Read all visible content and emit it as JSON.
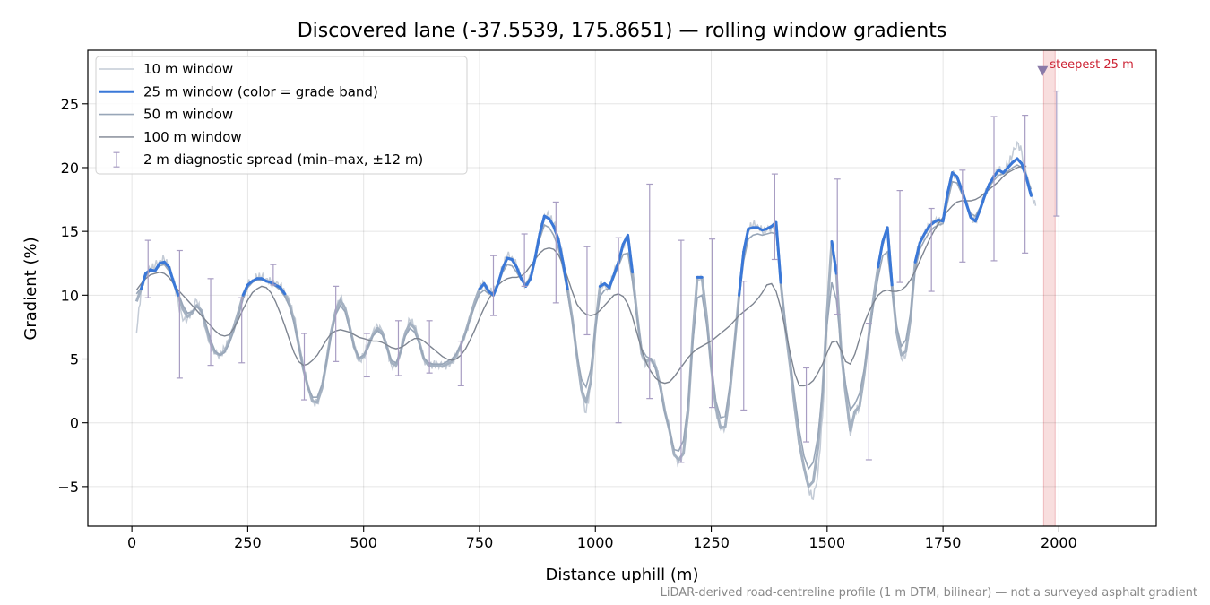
{
  "chart_data": {
    "type": "line",
    "title": "Discovered lane (-37.5539, 175.8651) — rolling window gradients",
    "xlabel": "Distance uphill (m)",
    "ylabel": "Gradient (%)",
    "xlim": [
      -95,
      2210
    ],
    "ylim": [
      -8.1,
      29.2
    ],
    "xticks": [
      0,
      250,
      500,
      750,
      1000,
      1250,
      1500,
      1750,
      2000
    ],
    "yticks": [
      -5,
      0,
      5,
      10,
      15,
      20,
      25
    ],
    "ytick_labels": [
      "−5",
      "0",
      "5",
      "10",
      "15",
      "20",
      "25"
    ],
    "grid": true,
    "legend_position": "top-left",
    "footnote": "LiDAR-derived road-centreline profile (1 m DTM, bilinear) — not a surveyed asphalt gradient",
    "colors": {
      "w10": "#c3cbd6",
      "w25": "#3a78d8",
      "w25_faded": "#a4b1c1",
      "w25_orange": "#e38f10",
      "w50": "#98a6b8",
      "w100": "#7d8490",
      "errorbar": "#a89dc3",
      "steep_band": "#f2c3c3",
      "marker": "#8a7aa8",
      "annotation": "#cc2233"
    },
    "anchors_x": [
      10,
      20,
      30,
      40,
      50,
      60,
      70,
      80,
      90,
      100,
      110,
      120,
      130,
      140,
      150,
      160,
      170,
      180,
      190,
      200,
      210,
      220,
      230,
      240,
      250,
      260,
      270,
      280,
      290,
      300,
      310,
      320,
      330,
      340,
      350,
      360,
      370,
      380,
      390,
      400,
      410,
      420,
      430,
      440,
      450,
      460,
      470,
      480,
      490,
      500,
      510,
      520,
      530,
      540,
      550,
      560,
      570,
      580,
      590,
      600,
      610,
      620,
      630,
      640,
      650,
      660,
      670,
      680,
      690,
      700,
      710,
      720,
      730,
      740,
      750,
      760,
      770,
      780,
      790,
      800,
      810,
      820,
      830,
      840,
      850,
      860,
      870,
      880,
      890,
      900,
      910,
      920,
      930,
      940,
      950,
      960,
      970,
      980,
      990,
      1000,
      1010,
      1020,
      1030,
      1040,
      1050,
      1060,
      1070,
      1080,
      1090,
      1100,
      1110,
      1120,
      1130,
      1140,
      1150,
      1160,
      1170,
      1180,
      1190,
      1200,
      1210,
      1220,
      1230,
      1240,
      1250,
      1260,
      1270,
      1280,
      1290,
      1300,
      1310,
      1320,
      1330,
      1340,
      1350,
      1360,
      1370,
      1380,
      1390,
      1400,
      1410,
      1420,
      1430,
      1440,
      1450,
      1460,
      1470,
      1480,
      1490,
      1500,
      1510,
      1520,
      1530,
      1540,
      1550,
      1560,
      1570,
      1580,
      1590,
      1600,
      1610,
      1620,
      1630,
      1640,
      1650,
      1660,
      1670,
      1680,
      1690,
      1700,
      1710,
      1720,
      1730,
      1740,
      1750,
      1760,
      1770,
      1780,
      1790,
      1800,
      1810,
      1820,
      1830,
      1840,
      1850,
      1860,
      1870,
      1880,
      1890,
      1900,
      1910,
      1920,
      1930,
      1940,
      1950,
      1960,
      1970,
      1980,
      1990,
      2000,
      2010
    ],
    "series": [
      {
        "name": "10 m window",
        "values": [
          7.0,
          10.5,
          11.6,
          12.0,
          12.3,
          12.7,
          12.8,
          12.2,
          11.3,
          9.5,
          8.0,
          8.2,
          8.8,
          9.6,
          8.5,
          7.2,
          6.0,
          5.4,
          5.3,
          5.8,
          6.6,
          7.5,
          8.5,
          9.8,
          10.8,
          11.2,
          11.4,
          11.4,
          11.3,
          11.0,
          10.9,
          10.8,
          10.2,
          9.5,
          8.3,
          6.4,
          4.3,
          2.7,
          1.6,
          1.5,
          2.8,
          5.0,
          7.3,
          8.9,
          9.8,
          9.0,
          7.5,
          5.8,
          4.8,
          5.2,
          6.1,
          7.1,
          7.6,
          7.2,
          5.9,
          4.5,
          4.4,
          5.7,
          7.2,
          8.0,
          7.6,
          6.4,
          5.0,
          4.5,
          4.6,
          4.6,
          4.5,
          4.5,
          4.7,
          5.1,
          6.0,
          7.0,
          8.2,
          9.5,
          10.6,
          11.0,
          10.4,
          10.2,
          11.0,
          12.2,
          13.1,
          13.0,
          12.3,
          11.3,
          10.8,
          11.4,
          13.0,
          15.0,
          16.3,
          16.2,
          15.6,
          14.6,
          12.8,
          10.7,
          8.4,
          5.3,
          2.3,
          0.8,
          3.0,
          7.5,
          10.8,
          10.8,
          10.4,
          11.8,
          12.5,
          14.0,
          14.6,
          12.0,
          8.5,
          5.2,
          4.6,
          4.9,
          4.5,
          3.0,
          1.0,
          -0.5,
          -2.6,
          -3.1,
          -2.5,
          1.0,
          7.0,
          11.5,
          11.0,
          8.0,
          4.2,
          1.0,
          -0.5,
          -0.3,
          2.2,
          6.0,
          10.2,
          13.5,
          15.2,
          15.5,
          15.5,
          15.0,
          15.1,
          15.3,
          15.6,
          11.0,
          7.3,
          4.5,
          1.2,
          -1.7,
          -3.5,
          -5.2,
          -6.0,
          -4.0,
          0.5,
          8.0,
          14.0,
          12.0,
          5.6,
          2.1,
          -1.0,
          1.0,
          1.1,
          3.6,
          6.7,
          9.8,
          12.3,
          14.3,
          15.0,
          11.0,
          7.0,
          5.0,
          5.3,
          8.0,
          12.8,
          14.2,
          14.9,
          15.4,
          15.8,
          15.8,
          15.7,
          18.0,
          19.5,
          19.2,
          18.2,
          17.3,
          16.2,
          15.8,
          16.8,
          17.9,
          18.6,
          19.3,
          19.8,
          19.6,
          20.2,
          21.0,
          22.0,
          21.2,
          19.5,
          18.0,
          17.0
        ]
      },
      {
        "name": "25 m window (color = grade band)",
        "values": [
          9.5,
          10.5,
          11.7,
          12.0,
          11.9,
          12.5,
          12.6,
          12.2,
          11.0,
          10.0,
          8.9,
          8.3,
          8.6,
          9.2,
          8.8,
          7.5,
          6.2,
          5.5,
          5.3,
          5.6,
          6.4,
          7.5,
          8.7,
          10.0,
          10.8,
          11.1,
          11.3,
          11.3,
          11.1,
          11.0,
          10.8,
          10.6,
          10.1,
          9.3,
          8.0,
          6.1,
          4.2,
          2.8,
          1.7,
          1.6,
          2.7,
          4.8,
          7.1,
          8.8,
          9.6,
          9.0,
          7.5,
          5.9,
          5.0,
          5.2,
          6.0,
          6.9,
          7.4,
          7.1,
          6.0,
          4.7,
          4.5,
          5.6,
          7.0,
          7.8,
          7.4,
          6.3,
          5.0,
          4.5,
          4.5,
          4.5,
          4.4,
          4.6,
          4.8,
          5.3,
          6.1,
          7.1,
          8.3,
          9.5,
          10.5,
          10.9,
          10.3,
          10.0,
          10.9,
          12.1,
          12.9,
          12.8,
          12.2,
          11.3,
          10.7,
          11.3,
          12.9,
          14.8,
          16.2,
          16.0,
          15.4,
          14.4,
          12.6,
          10.5,
          8.2,
          5.3,
          2.6,
          1.6,
          3.2,
          7.5,
          10.7,
          10.9,
          10.6,
          11.6,
          12.6,
          14.0,
          14.7,
          11.8,
          8.4,
          5.4,
          4.8,
          5.0,
          4.4,
          2.9,
          0.9,
          -0.6,
          -2.5,
          -2.9,
          -2.4,
          0.9,
          6.8,
          11.4,
          11.4,
          8.3,
          4.4,
          1.2,
          -0.4,
          -0.3,
          2.3,
          6.1,
          10.0,
          13.4,
          15.2,
          15.3,
          15.3,
          15.1,
          15.2,
          15.4,
          15.7,
          11.0,
          7.4,
          4.5,
          1.3,
          -1.6,
          -3.5,
          -5.0,
          -4.6,
          -2.0,
          2.3,
          8.6,
          14.2,
          11.7,
          5.8,
          2.3,
          -0.6,
          0.9,
          1.3,
          3.8,
          6.9,
          9.7,
          12.2,
          14.2,
          15.3,
          10.8,
          7.1,
          5.3,
          5.6,
          8.2,
          12.6,
          14.1,
          14.8,
          15.4,
          15.7,
          15.9,
          15.8,
          18.0,
          19.6,
          19.3,
          18.3,
          17.2,
          16.1,
          15.8,
          16.7,
          17.8,
          18.7,
          19.3,
          19.8,
          19.6,
          20.0,
          20.4,
          20.7,
          20.3,
          19.2,
          17.8
        ]
      },
      {
        "name": "50 m window",
        "values": [
          10.1,
          10.6,
          11.5,
          11.9,
          11.9,
          12.3,
          12.4,
          11.9,
          11.1,
          10.2,
          9.2,
          8.6,
          8.7,
          9.1,
          8.7,
          7.7,
          6.5,
          5.6,
          5.3,
          5.5,
          6.2,
          7.2,
          8.4,
          9.7,
          10.6,
          11.0,
          11.2,
          11.2,
          11.1,
          10.9,
          10.7,
          10.4,
          9.9,
          9.1,
          7.8,
          6.0,
          4.2,
          2.8,
          2.0,
          2.0,
          3.0,
          4.8,
          6.8,
          8.5,
          9.2,
          8.7,
          7.3,
          5.9,
          5.1,
          5.3,
          6.0,
          6.8,
          7.2,
          6.9,
          5.9,
          4.9,
          4.7,
          5.6,
          6.8,
          7.4,
          7.1,
          6.2,
          5.1,
          4.7,
          4.6,
          4.6,
          4.6,
          4.8,
          5.0,
          5.4,
          6.1,
          7.0,
          8.1,
          9.2,
          10.1,
          10.4,
          10.1,
          10.1,
          10.8,
          11.8,
          12.4,
          12.3,
          11.8,
          11.2,
          10.9,
          11.5,
          12.8,
          14.4,
          15.5,
          15.3,
          14.7,
          13.7,
          12.1,
          10.2,
          8.0,
          5.4,
          3.4,
          2.8,
          4.2,
          7.4,
          9.9,
          10.4,
          10.5,
          11.4,
          12.3,
          13.2,
          13.3,
          11.1,
          8.2,
          5.8,
          5.2,
          5.0,
          4.2,
          2.6,
          0.8,
          -0.6,
          -2.1,
          -2.2,
          -1.4,
          1.5,
          6.3,
          9.8,
          10.0,
          7.7,
          4.5,
          1.7,
          0.4,
          0.5,
          2.9,
          6.2,
          9.7,
          12.7,
          14.4,
          14.7,
          14.8,
          14.7,
          14.8,
          14.9,
          14.8,
          11.0,
          7.8,
          5.1,
          2.1,
          -0.6,
          -2.6,
          -3.6,
          -3.1,
          -1.1,
          2.5,
          7.7,
          11.0,
          9.6,
          5.9,
          3.0,
          1.0,
          1.5,
          2.3,
          4.2,
          6.8,
          9.2,
          11.4,
          13.1,
          13.4,
          10.4,
          7.6,
          6.0,
          6.5,
          8.6,
          12.0,
          13.6,
          14.3,
          14.9,
          15.3,
          15.5,
          15.6,
          17.3,
          18.9,
          18.8,
          18.0,
          17.2,
          16.4,
          16.2,
          16.9,
          17.8,
          18.5,
          19.0,
          19.4,
          19.5,
          19.7,
          20.0,
          20.2,
          20.0,
          19.3,
          18.3
        ]
      },
      {
        "name": "100 m window",
        "values": [
          10.4,
          10.9,
          11.3,
          11.6,
          11.7,
          11.8,
          11.7,
          11.4,
          10.9,
          10.4,
          10.0,
          9.6,
          9.2,
          8.8,
          8.4,
          8.0,
          7.6,
          7.2,
          6.9,
          6.8,
          6.9,
          7.4,
          8.1,
          8.9,
          9.6,
          10.2,
          10.5,
          10.7,
          10.6,
          10.2,
          9.5,
          8.6,
          7.6,
          6.5,
          5.5,
          4.8,
          4.5,
          4.6,
          4.9,
          5.3,
          5.9,
          6.5,
          7.0,
          7.2,
          7.3,
          7.2,
          7.1,
          6.9,
          6.7,
          6.6,
          6.5,
          6.4,
          6.4,
          6.3,
          6.1,
          5.9,
          5.8,
          5.9,
          6.1,
          6.4,
          6.6,
          6.6,
          6.4,
          6.1,
          5.8,
          5.5,
          5.2,
          5.0,
          4.9,
          5.0,
          5.3,
          5.8,
          6.5,
          7.3,
          8.2,
          9.0,
          9.7,
          10.3,
          10.8,
          11.1,
          11.3,
          11.4,
          11.4,
          11.5,
          11.8,
          12.3,
          12.8,
          13.3,
          13.6,
          13.7,
          13.6,
          13.2,
          12.4,
          11.4,
          10.3,
          9.3,
          8.8,
          8.5,
          8.4,
          8.5,
          8.8,
          9.2,
          9.6,
          10.0,
          10.1,
          9.9,
          9.3,
          8.3,
          7.0,
          5.7,
          4.7,
          4.0,
          3.5,
          3.2,
          3.1,
          3.2,
          3.6,
          4.1,
          4.6,
          5.1,
          5.5,
          5.8,
          6.0,
          6.2,
          6.4,
          6.7,
          7.0,
          7.3,
          7.6,
          8.0,
          8.4,
          8.7,
          9.0,
          9.3,
          9.7,
          10.2,
          10.8,
          10.9,
          10.3,
          9.0,
          7.3,
          5.5,
          3.9,
          2.9,
          2.9,
          3.0,
          3.3,
          3.9,
          4.6,
          5.5,
          6.3,
          6.4,
          5.7,
          4.8,
          4.6,
          5.4,
          6.6,
          7.8,
          8.7,
          9.4,
          10.0,
          10.3,
          10.4,
          10.3,
          10.3,
          10.4,
          10.7,
          11.2,
          11.9,
          12.7,
          13.5,
          14.3,
          15.0,
          15.6,
          16.1,
          16.6,
          17.0,
          17.3,
          17.4,
          17.4,
          17.4,
          17.5,
          17.7,
          18.0,
          18.3,
          18.6,
          18.9,
          19.3,
          19.6,
          19.8,
          20.0,
          20.1,
          20.1
        ]
      }
    ],
    "diagnostic_spread_name": "2 m diagnostic spread (min–max, ±12 m)",
    "errorbars": [
      {
        "x": 35,
        "low": 9.8,
        "high": 14.3
      },
      {
        "x": 103,
        "low": 3.5,
        "high": 13.5
      },
      {
        "x": 170,
        "low": 4.5,
        "high": 11.3
      },
      {
        "x": 237,
        "low": 4.7,
        "high": 9.8
      },
      {
        "x": 305,
        "low": 10.8,
        "high": 12.4
      },
      {
        "x": 372,
        "low": 1.8,
        "high": 7.0
      },
      {
        "x": 440,
        "low": 4.8,
        "high": 10.7
      },
      {
        "x": 507,
        "low": 3.6,
        "high": 7.0
      },
      {
        "x": 575,
        "low": 3.7,
        "high": 8.0
      },
      {
        "x": 642,
        "low": 3.9,
        "high": 8.0
      },
      {
        "x": 710,
        "low": 2.9,
        "high": 6.4
      },
      {
        "x": 780,
        "low": 8.4,
        "high": 13.1
      },
      {
        "x": 847,
        "low": 10.7,
        "high": 14.8
      },
      {
        "x": 915,
        "low": 9.4,
        "high": 17.3
      },
      {
        "x": 982,
        "low": 6.9,
        "high": 13.8
      },
      {
        "x": 1050,
        "low": 0.0,
        "high": 14.5
      },
      {
        "x": 1117,
        "low": 1.9,
        "high": 18.7
      },
      {
        "x": 1185,
        "low": -3.1,
        "high": 14.3
      },
      {
        "x": 1252,
        "low": 1.2,
        "high": 14.4
      },
      {
        "x": 1320,
        "low": 1.0,
        "high": 11.1
      },
      {
        "x": 1387,
        "low": 12.8,
        "high": 19.5
      },
      {
        "x": 1455,
        "low": -1.5,
        "high": 4.3
      },
      {
        "x": 1522,
        "low": 8.5,
        "high": 19.1
      },
      {
        "x": 1590,
        "low": -2.9,
        "high": 7.8
      },
      {
        "x": 1657,
        "low": 11.0,
        "high": 18.2
      },
      {
        "x": 1725,
        "low": 10.3,
        "high": 16.8
      },
      {
        "x": 1792,
        "low": 12.6,
        "high": 19.8
      },
      {
        "x": 1860,
        "low": 12.7,
        "high": 24.0
      },
      {
        "x": 1927,
        "low": 13.3,
        "high": 24.1
      },
      {
        "x": 1995,
        "low": 16.2,
        "high": 26.0
      }
    ],
    "steepest_band": {
      "x_start": 1967,
      "x_end": 1992
    },
    "steepest_marker": {
      "x": 1965,
      "y": 27.6,
      "label": "steepest 25 m"
    }
  }
}
